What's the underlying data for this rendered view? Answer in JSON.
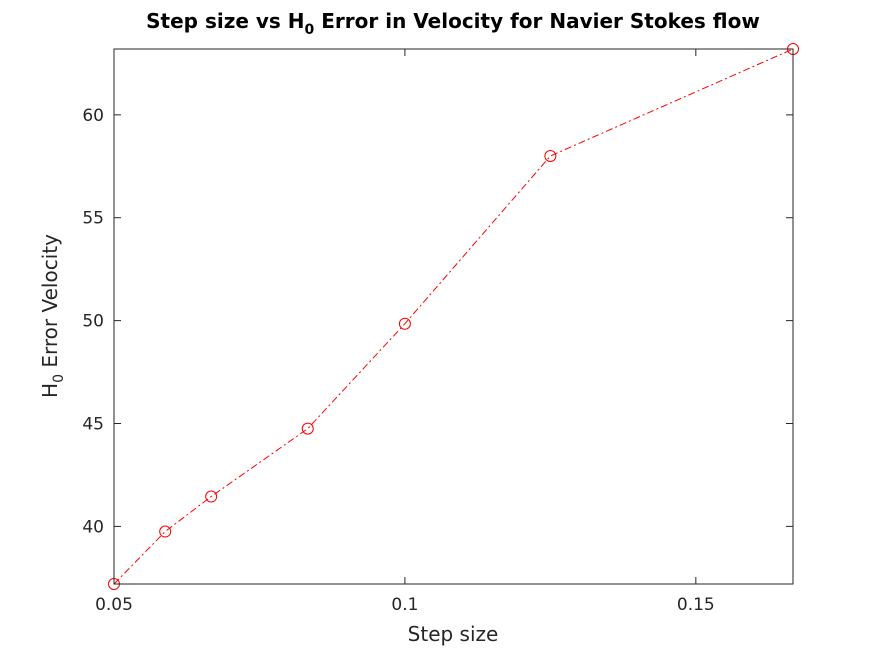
{
  "chart_data": {
    "type": "line",
    "title": {
      "prefix": "Step size vs H",
      "subscript": "0",
      "suffix": " Error in Velocity for Navier Stokes flow"
    },
    "xlabel": "Step size",
    "ylabel": {
      "prefix": "H",
      "subscript": "0",
      "suffix": " Error Velocity"
    },
    "xlim": [
      0.05,
      0.1667
    ],
    "ylim": [
      37.2,
      63.2
    ],
    "xticks": [
      0.05,
      0.1,
      0.15
    ],
    "xtick_labels": [
      "0.05",
      "0.1",
      "0.15"
    ],
    "yticks": [
      40,
      45,
      50,
      55,
      60
    ],
    "ytick_labels": [
      "40",
      "45",
      "50",
      "55",
      "60"
    ],
    "grid": false,
    "series": [
      {
        "color": "#ff0000",
        "line_style": "dash-dot",
        "marker": "circle",
        "x": [
          0.05,
          0.0588,
          0.0667,
          0.0833,
          0.1,
          0.125,
          0.1667
        ],
        "y": [
          37.2,
          39.75,
          41.45,
          44.75,
          49.85,
          58.0,
          63.2
        ]
      }
    ]
  }
}
